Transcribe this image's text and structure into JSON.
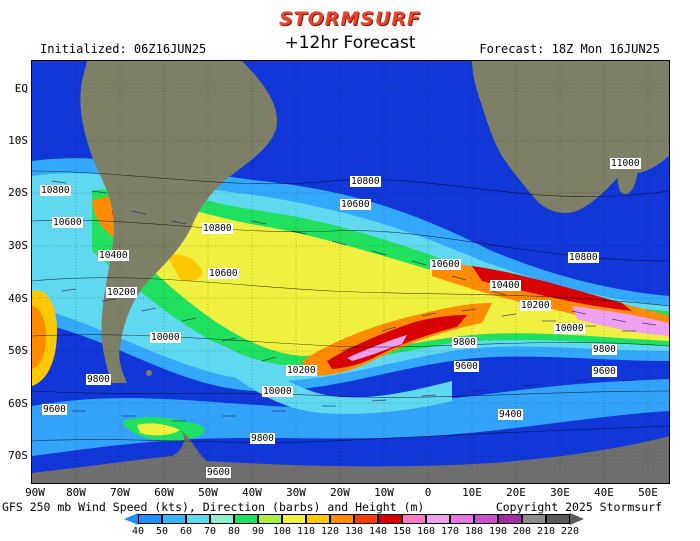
{
  "header": {
    "brand": "STORMSURF",
    "title": "+12hr Forecast",
    "initialized": "Initialized: 06Z16JUN25",
    "valid": "Forecast: 18Z Mon 16JUN25"
  },
  "footer": {
    "description": "GFS 250 mb Wind Speed (kts), Direction (barbs) and Height (m)",
    "copyright": "Copyright 2025 Stormsurf"
  },
  "map": {
    "lat_labels": [
      "EQ",
      "10S",
      "20S",
      "30S",
      "40S",
      "50S",
      "60S",
      "70S"
    ],
    "lon_labels": [
      "90W",
      "80W",
      "70W",
      "60W",
      "50W",
      "40W",
      "30W",
      "20W",
      "10W",
      "0",
      "10E",
      "20E",
      "30E",
      "40E",
      "50E"
    ],
    "height_labels": [
      "10800",
      "10600",
      "10400",
      "10200",
      "10000",
      "9800",
      "9600",
      "9400",
      "11000",
      "10800",
      "10600",
      "10400",
      "10200",
      "10000",
      "9800",
      "9600",
      "9800",
      "10800",
      "10600",
      "10800",
      "10600",
      "10200",
      "10000",
      "9800",
      "9600",
      "9600"
    ],
    "colors": {
      "ocean_background": "#1137d8",
      "land": "#7d7f66",
      "antarctica": "#6e6e6e"
    }
  },
  "legend": {
    "ticks": [
      "40",
      "50",
      "60",
      "70",
      "80",
      "90",
      "100",
      "110",
      "120",
      "130",
      "140",
      "150",
      "160",
      "170",
      "180",
      "190",
      "200",
      "210",
      "220"
    ],
    "colors": [
      "#1e90ff",
      "#38b6ff",
      "#60d8f0",
      "#8cf0d0",
      "#20e060",
      "#a8f040",
      "#f0f040",
      "#ffc800",
      "#ff8c00",
      "#ff3c00",
      "#d80000",
      "#ff78c8",
      "#f0a0f0",
      "#e078e0",
      "#c850c8",
      "#a030a0",
      "#8c8c8c",
      "#5a5a5a"
    ]
  }
}
